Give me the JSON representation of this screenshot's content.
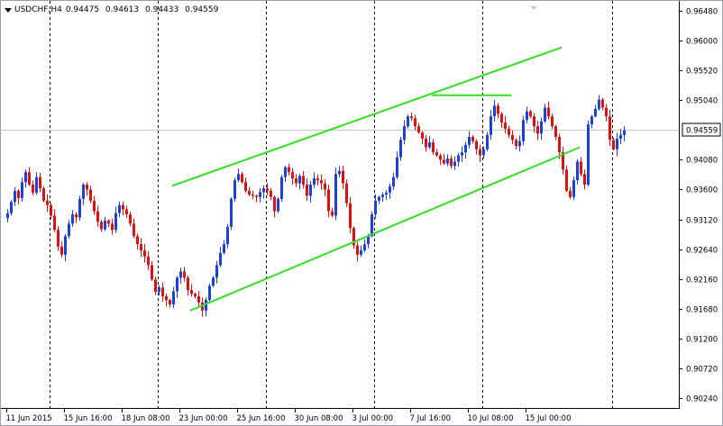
{
  "header": {
    "symbol": "USDCHF,H4",
    "open": "0.94475",
    "high": "0.94613",
    "low": "0.94433",
    "close": "0.94559"
  },
  "colors": {
    "bull": "#1b3fe0",
    "bear": "#e01010",
    "channel": "#33dd22",
    "grid": "#000000",
    "bid_line": "#c8c8c8"
  },
  "chart_data": {
    "type": "candlestick",
    "symbol": "USDCHF",
    "timeframe": "H4",
    "current_price": "0.94559",
    "y_ticks": [
      "0.96480",
      "0.96000",
      "0.95520",
      "0.95040",
      "0.94559",
      "0.94080",
      "0.93600",
      "0.93120",
      "0.92640",
      "0.92160",
      "0.91680",
      "0.91200",
      "0.90720",
      "0.90240"
    ],
    "y_tick_values": [
      0.9648,
      0.96,
      0.9552,
      0.9504,
      0.94559,
      0.9408,
      0.936,
      0.9312,
      0.9264,
      0.9216,
      0.9168,
      0.912,
      0.9072,
      0.9024
    ],
    "x_labels": [
      "11 Jun 2015",
      "15 Jun 16:00",
      "18 Jun 08:00",
      "23 Jun 00:00",
      "25 Jun 16:00",
      "30 Jun 08:00",
      "3 Jul 00:00",
      "7 Jul 16:00",
      "10 Jul 08:00",
      "15 Jul 00:00"
    ],
    "x_label_bars": [
      0,
      16,
      32,
      48,
      64,
      80,
      96,
      112,
      128,
      144
    ],
    "period_separator_bars": [
      12,
      42,
      72,
      102,
      132,
      168
    ],
    "ylim": [
      0.9008,
      0.9664
    ],
    "grid": false,
    "closes": [
      0.9322,
      0.934,
      0.9358,
      0.9346,
      0.9372,
      0.9388,
      0.9368,
      0.9355,
      0.938,
      0.9362,
      0.9342,
      0.9335,
      0.9318,
      0.9295,
      0.9268,
      0.9255,
      0.9285,
      0.9305,
      0.932,
      0.9315,
      0.9345,
      0.9368,
      0.936,
      0.9342,
      0.9325,
      0.9308,
      0.9296,
      0.931,
      0.9305,
      0.9295,
      0.9322,
      0.9335,
      0.9328,
      0.932,
      0.9305,
      0.9285,
      0.9272,
      0.9262,
      0.9252,
      0.9238,
      0.9215,
      0.9195,
      0.9202,
      0.9188,
      0.9182,
      0.9175,
      0.9196,
      0.9218,
      0.9228,
      0.9218,
      0.9198,
      0.9192,
      0.9188,
      0.9178,
      0.9165,
      0.9182,
      0.9205,
      0.9218,
      0.9238,
      0.9258,
      0.9272,
      0.93,
      0.9345,
      0.9375,
      0.9385,
      0.9372,
      0.9358,
      0.9352,
      0.935,
      0.9348,
      0.9356,
      0.9362,
      0.9358,
      0.9348,
      0.9325,
      0.9345,
      0.938,
      0.9396,
      0.9388,
      0.9378,
      0.937,
      0.9382,
      0.9368,
      0.935,
      0.9368,
      0.9378,
      0.9375,
      0.937,
      0.936,
      0.9325,
      0.9318,
      0.9385,
      0.939,
      0.937,
      0.9338,
      0.9298,
      0.927,
      0.9255,
      0.9262,
      0.9272,
      0.9285,
      0.932,
      0.9342,
      0.9348,
      0.9352,
      0.9355,
      0.9365,
      0.938,
      0.9412,
      0.944,
      0.9462,
      0.9478,
      0.9475,
      0.9462,
      0.9452,
      0.9442,
      0.9428,
      0.9436,
      0.942,
      0.9415,
      0.9408,
      0.9402,
      0.941,
      0.9398,
      0.9405,
      0.9415,
      0.942,
      0.9432,
      0.9445,
      0.9438,
      0.9425,
      0.9415,
      0.9425,
      0.9448,
      0.9478,
      0.9495,
      0.9482,
      0.9468,
      0.9458,
      0.9448,
      0.944,
      0.943,
      0.9438,
      0.9472,
      0.9486,
      0.9478,
      0.9462,
      0.945,
      0.947,
      0.9492,
      0.9478,
      0.9462,
      0.9445,
      0.942,
      0.9392,
      0.9358,
      0.9348,
      0.9375,
      0.9405,
      0.9385,
      0.9368,
      0.9465,
      0.9478,
      0.949,
      0.9505,
      0.9492,
      0.9478,
      0.944,
      0.9425,
      0.9442,
      0.9448,
      0.9455
    ],
    "channel": {
      "upper": [
        [
          46,
          0.9366
        ],
        [
          154,
          0.9589
        ]
      ],
      "lower": [
        [
          51,
          0.9165
        ],
        [
          159,
          0.9428
        ]
      ],
      "horizontal": [
        [
          118,
          0.9512
        ],
        [
          140,
          0.9512
        ]
      ]
    }
  }
}
